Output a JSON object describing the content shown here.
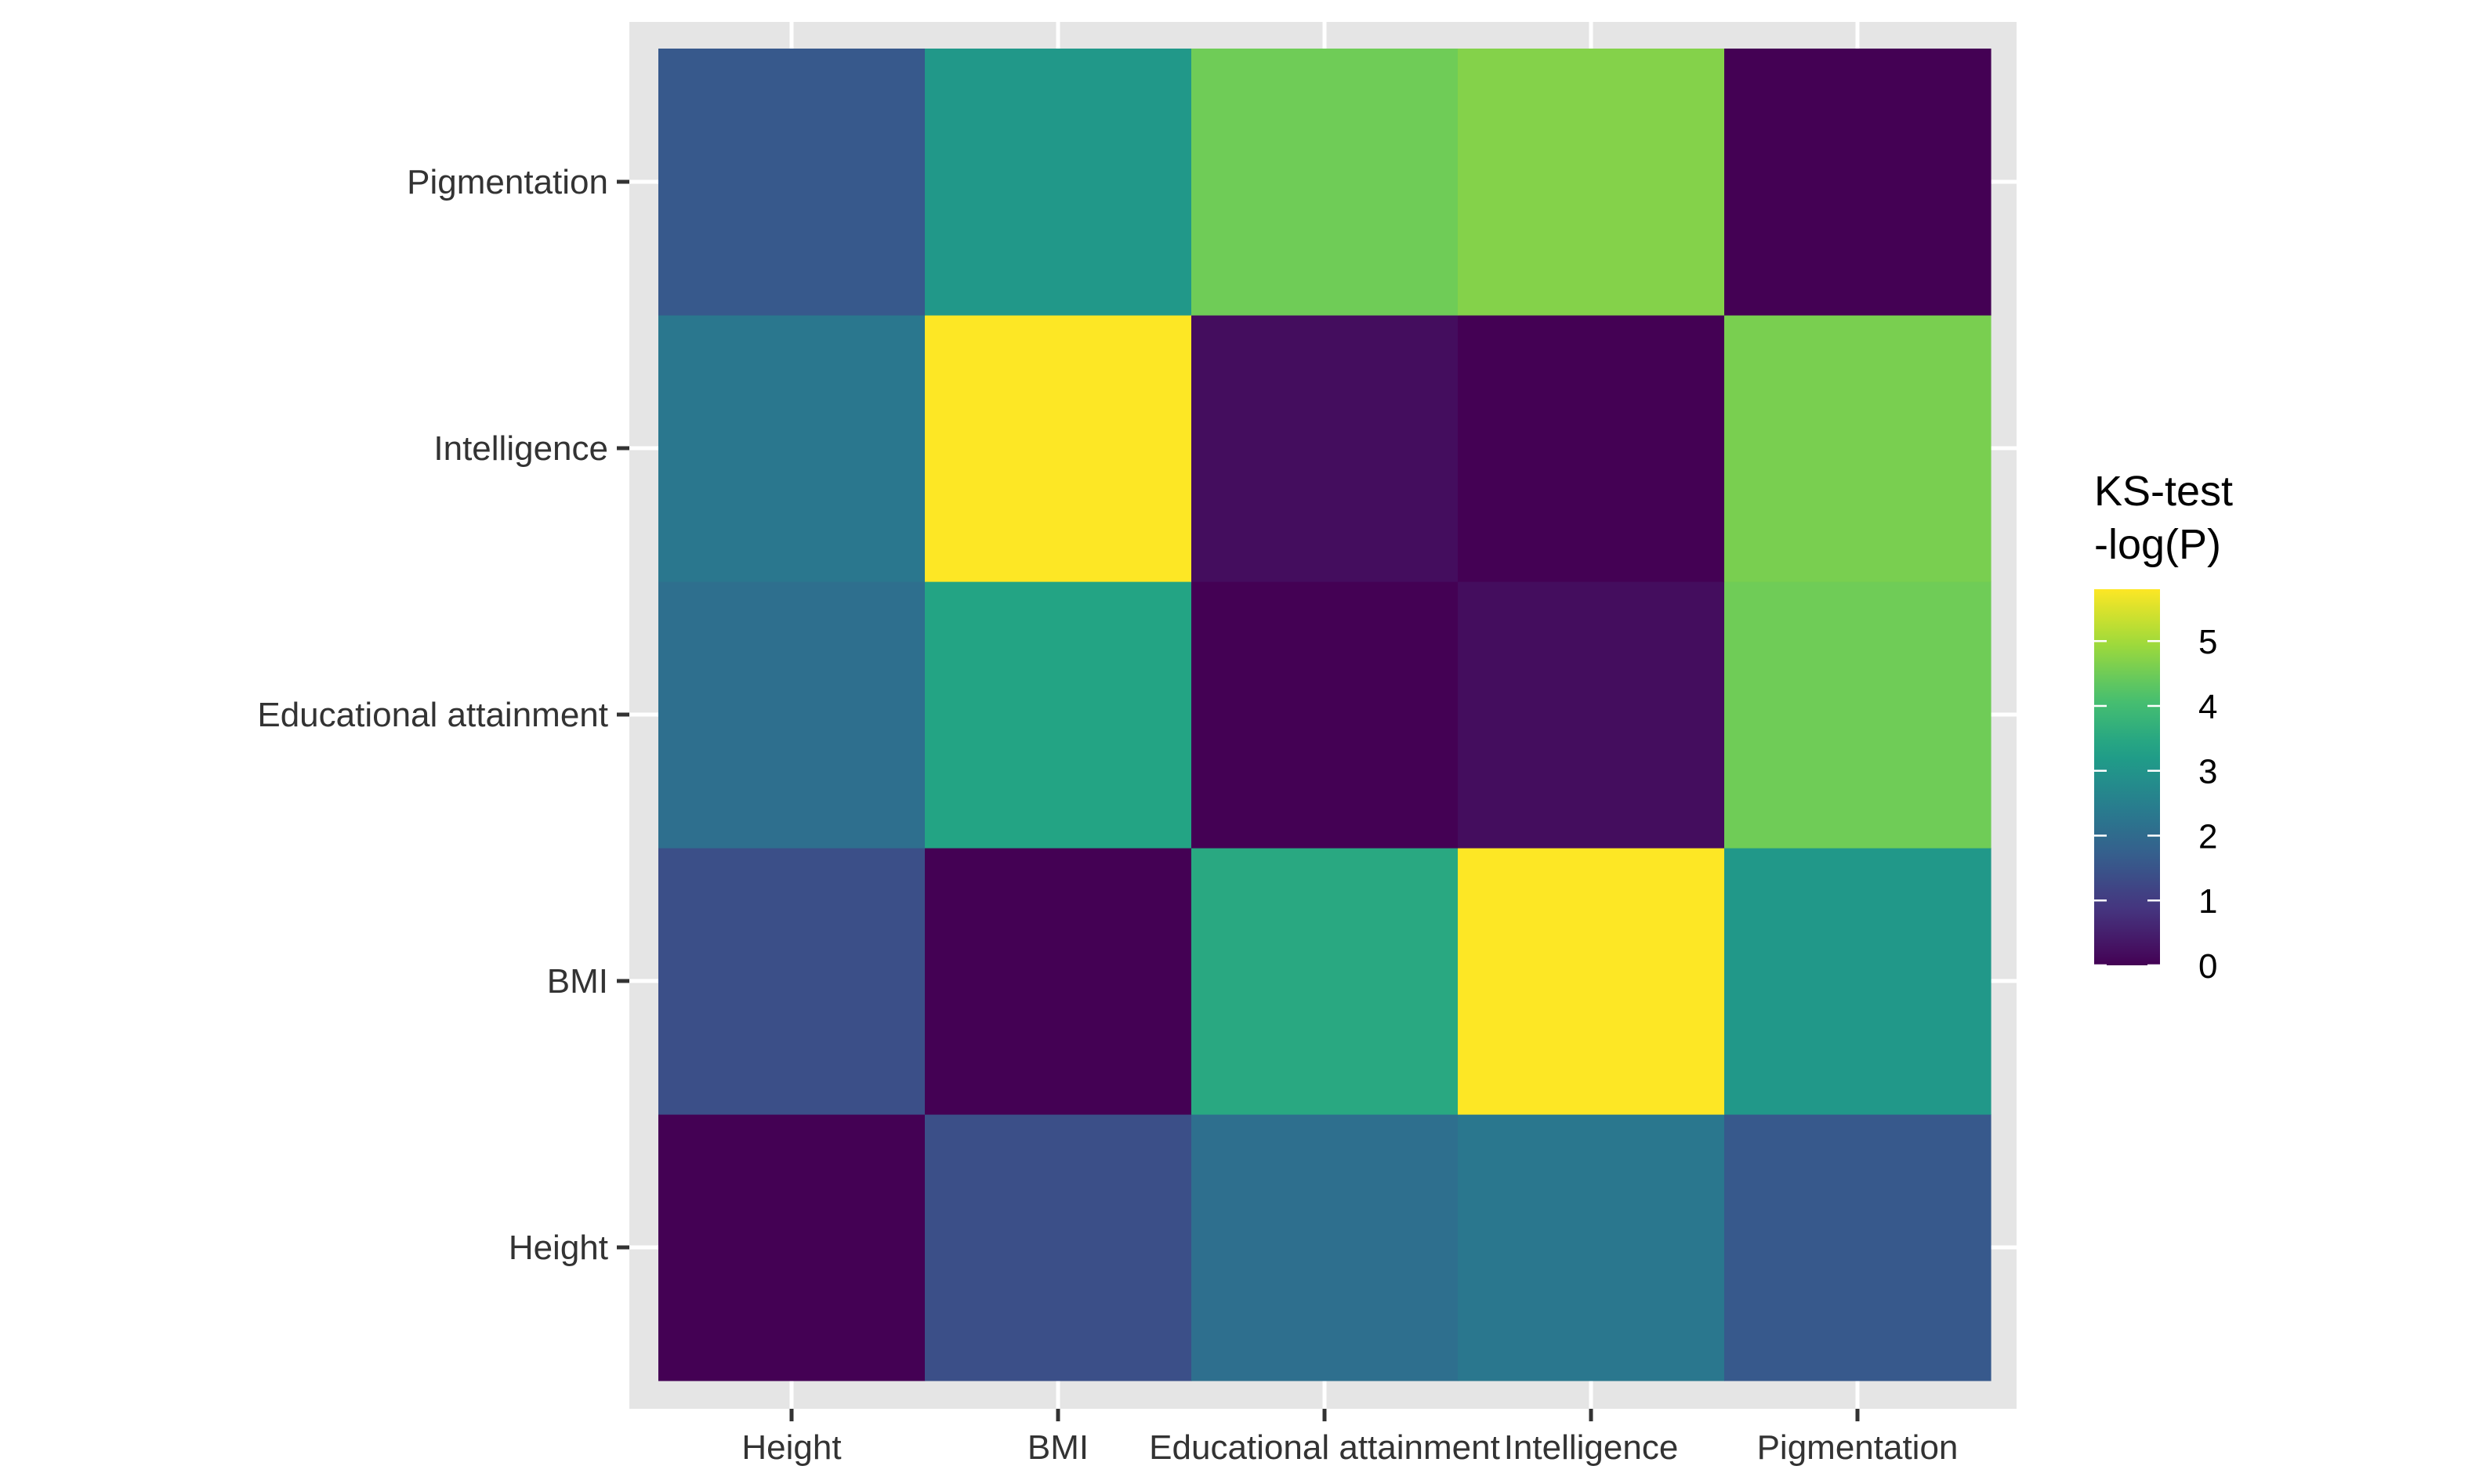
{
  "chart_data": {
    "type": "heatmap",
    "x_categories": [
      "Height",
      "BMI",
      "Educational attainment",
      "Intelligence",
      "Pigmentation"
    ],
    "y_categories": [
      "Height",
      "BMI",
      "Educational attainment",
      "Intelligence",
      "Pigmentation"
    ],
    "values": [
      [
        0.0,
        1.4,
        2.1,
        2.3,
        1.6
      ],
      [
        1.4,
        0.0,
        3.5,
        5.8,
        3.1
      ],
      [
        2.1,
        3.4,
        0.0,
        0.2,
        4.5
      ],
      [
        2.3,
        5.8,
        0.2,
        0.0,
        4.6
      ],
      [
        1.6,
        3.1,
        4.5,
        4.7,
        0.0
      ]
    ],
    "legend": {
      "title_lines": [
        "KS-test",
        "-log(P)"
      ],
      "ticks": [
        0,
        1,
        2,
        3,
        4,
        5
      ],
      "tick_labels": [
        "0",
        "1",
        "2",
        "3",
        "4",
        "5"
      ],
      "range": [
        0,
        5.8
      ],
      "palette": "viridis",
      "placement": "right"
    },
    "title": "",
    "xlabel": "",
    "ylabel": "",
    "grid": true,
    "colors": {
      "panel_background": "#e5e5e5",
      "grid_line": "#ffffff",
      "axis_text": "#333333",
      "tick_mark": "#333333",
      "legend_text": "#000000",
      "viridis_stops": [
        "#440154",
        "#46337e",
        "#365c8d",
        "#277f8e",
        "#1fa187",
        "#4ac16d",
        "#a0da39",
        "#fde725"
      ]
    }
  }
}
